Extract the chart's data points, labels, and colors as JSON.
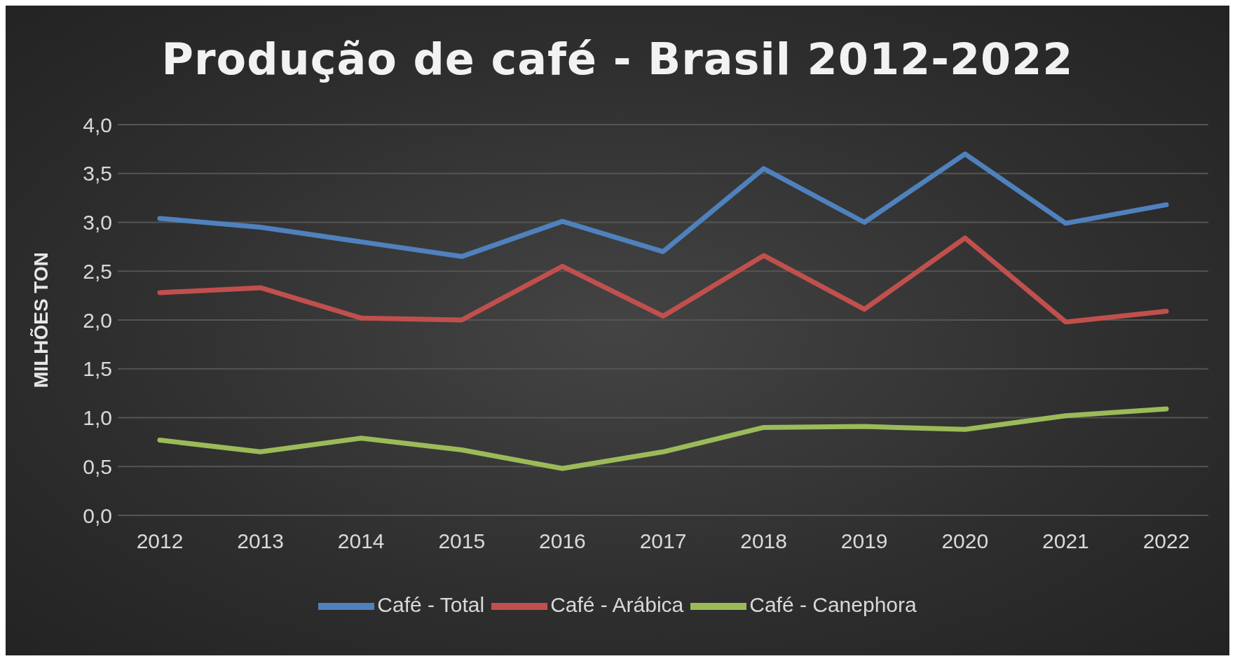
{
  "chart_data": {
    "type": "line",
    "title": "Produção de café - Brasil 2012-2022",
    "ylabel": "MILHÕES TON",
    "categories": [
      "2012",
      "2013",
      "2014",
      "2015",
      "2016",
      "2017",
      "2018",
      "2019",
      "2020",
      "2021",
      "2022"
    ],
    "series": [
      {
        "name": "Café - Total",
        "color": "#4f81bd",
        "values": [
          3.04,
          2.95,
          2.8,
          2.65,
          3.01,
          2.7,
          3.55,
          3.0,
          3.7,
          2.99,
          3.18
        ]
      },
      {
        "name": "Café - Arábica",
        "color": "#c0504d",
        "values": [
          2.28,
          2.33,
          2.02,
          2.0,
          2.55,
          2.04,
          2.66,
          2.11,
          2.84,
          1.98,
          2.09
        ]
      },
      {
        "name": "Café - Canephora",
        "color": "#9bbb59",
        "values": [
          0.77,
          0.65,
          0.79,
          0.67,
          0.48,
          0.65,
          0.9,
          0.91,
          0.88,
          1.02,
          1.09
        ]
      }
    ],
    "ylim": [
      0,
      4
    ],
    "yticks": [
      {
        "value": 0,
        "label": "0,0"
      },
      {
        "value": 0.5,
        "label": "0,5"
      },
      {
        "value": 1,
        "label": "1,0"
      },
      {
        "value": 1.5,
        "label": "1,5"
      },
      {
        "value": 2,
        "label": "2,0"
      },
      {
        "value": 2.5,
        "label": "2,5"
      },
      {
        "value": 3,
        "label": "3,0"
      },
      {
        "value": 3.5,
        "label": "3,5"
      },
      {
        "value": 4,
        "label": "4,0"
      }
    ],
    "grid": "y",
    "legend": "bottom"
  }
}
